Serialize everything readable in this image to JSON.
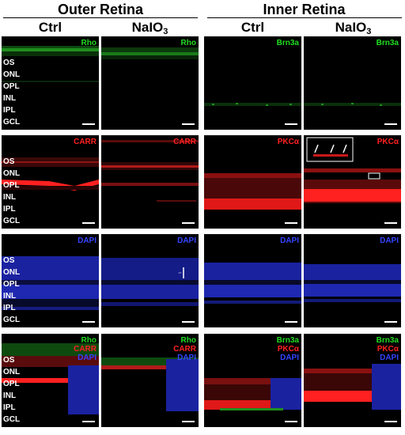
{
  "sections": {
    "outer": "Outer Retina",
    "inner": "Inner Retina"
  },
  "columns": {
    "ctrl": "Ctrl",
    "naio3_base": "NaIO",
    "naio3_sub": "3"
  },
  "layer_labels": [
    "OS",
    "ONL",
    "OPL",
    "INL",
    "IPL",
    "GCL"
  ],
  "markers": {
    "rho": "Rho",
    "carr": "CARR",
    "dapi": "DAPI",
    "brn3a": "Brn3a",
    "pkc": "PKCα"
  },
  "colors": {
    "green": "#22dd22",
    "red": "#ff2020",
    "blue": "#3344ff",
    "background": "#000000"
  },
  "scale_bar": "scale-bar"
}
